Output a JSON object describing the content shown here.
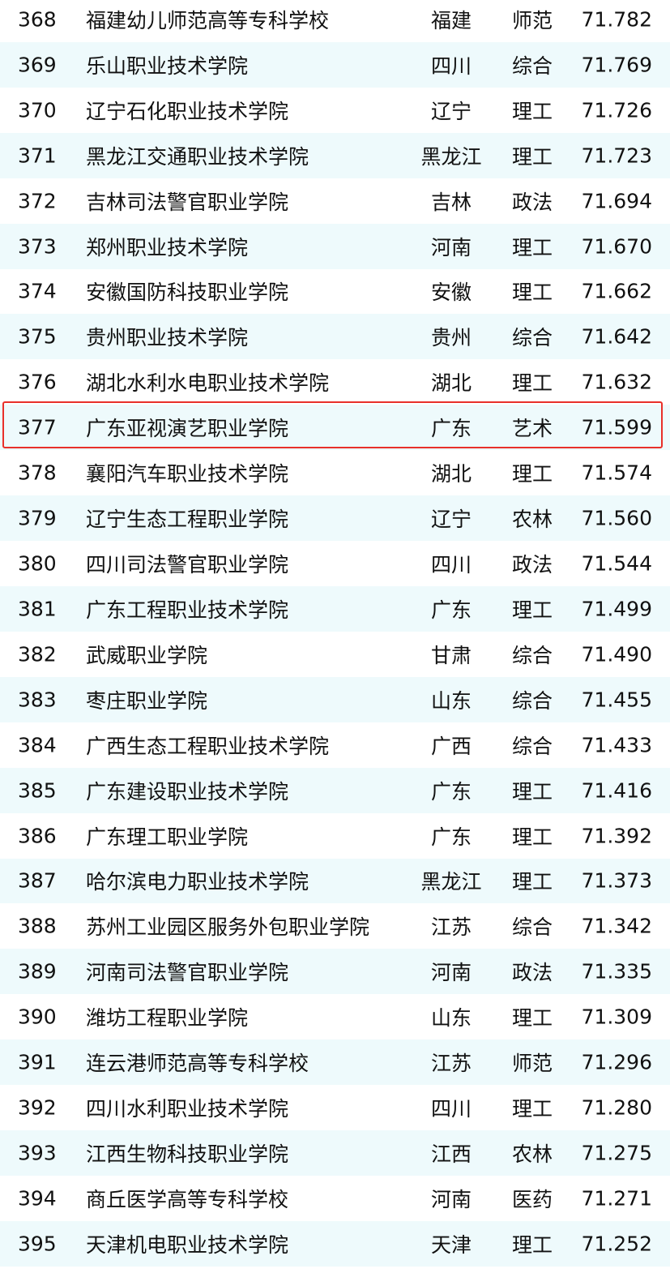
{
  "highlight_color": "#e8302a",
  "highlighted_rank": "377",
  "rows": [
    {
      "rank": "368",
      "name": "福建幼儿师范高等专科学校",
      "province": "福建",
      "type": "师范",
      "score": "71.782"
    },
    {
      "rank": "369",
      "name": "乐山职业技术学院",
      "province": "四川",
      "type": "综合",
      "score": "71.769"
    },
    {
      "rank": "370",
      "name": "辽宁石化职业技术学院",
      "province": "辽宁",
      "type": "理工",
      "score": "71.726"
    },
    {
      "rank": "371",
      "name": "黑龙江交通职业技术学院",
      "province": "黑龙江",
      "type": "理工",
      "score": "71.723"
    },
    {
      "rank": "372",
      "name": "吉林司法警官职业学院",
      "province": "吉林",
      "type": "政法",
      "score": "71.694"
    },
    {
      "rank": "373",
      "name": "郑州职业技术学院",
      "province": "河南",
      "type": "理工",
      "score": "71.670"
    },
    {
      "rank": "374",
      "name": "安徽国防科技职业学院",
      "province": "安徽",
      "type": "理工",
      "score": "71.662"
    },
    {
      "rank": "375",
      "name": "贵州职业技术学院",
      "province": "贵州",
      "type": "综合",
      "score": "71.642"
    },
    {
      "rank": "376",
      "name": "湖北水利水电职业技术学院",
      "province": "湖北",
      "type": "理工",
      "score": "71.632"
    },
    {
      "rank": "377",
      "name": "广东亚视演艺职业学院",
      "province": "广东",
      "type": "艺术",
      "score": "71.599"
    },
    {
      "rank": "378",
      "name": "襄阳汽车职业技术学院",
      "province": "湖北",
      "type": "理工",
      "score": "71.574"
    },
    {
      "rank": "379",
      "name": "辽宁生态工程职业学院",
      "province": "辽宁",
      "type": "农林",
      "score": "71.560"
    },
    {
      "rank": "380",
      "name": "四川司法警官职业学院",
      "province": "四川",
      "type": "政法",
      "score": "71.544"
    },
    {
      "rank": "381",
      "name": "广东工程职业技术学院",
      "province": "广东",
      "type": "理工",
      "score": "71.499"
    },
    {
      "rank": "382",
      "name": "武威职业学院",
      "province": "甘肃",
      "type": "综合",
      "score": "71.490"
    },
    {
      "rank": "383",
      "name": "枣庄职业学院",
      "province": "山东",
      "type": "综合",
      "score": "71.455"
    },
    {
      "rank": "384",
      "name": "广西生态工程职业技术学院",
      "province": "广西",
      "type": "综合",
      "score": "71.433"
    },
    {
      "rank": "385",
      "name": "广东建设职业技术学院",
      "province": "广东",
      "type": "理工",
      "score": "71.416"
    },
    {
      "rank": "386",
      "name": "广东理工职业学院",
      "province": "广东",
      "type": "理工",
      "score": "71.392"
    },
    {
      "rank": "387",
      "name": "哈尔滨电力职业技术学院",
      "province": "黑龙江",
      "type": "理工",
      "score": "71.373"
    },
    {
      "rank": "388",
      "name": "苏州工业园区服务外包职业学院",
      "province": "江苏",
      "type": "综合",
      "score": "71.342"
    },
    {
      "rank": "389",
      "name": "河南司法警官职业学院",
      "province": "河南",
      "type": "政法",
      "score": "71.335"
    },
    {
      "rank": "390",
      "name": "潍坊工程职业学院",
      "province": "山东",
      "type": "理工",
      "score": "71.309"
    },
    {
      "rank": "391",
      "name": "连云港师范高等专科学校",
      "province": "江苏",
      "type": "师范",
      "score": "71.296"
    },
    {
      "rank": "392",
      "name": "四川水利职业技术学院",
      "province": "四川",
      "type": "理工",
      "score": "71.280"
    },
    {
      "rank": "393",
      "name": "江西生物科技职业学院",
      "province": "江西",
      "type": "农林",
      "score": "71.275"
    },
    {
      "rank": "394",
      "name": "商丘医学高等专科学校",
      "province": "河南",
      "type": "医药",
      "score": "71.271"
    },
    {
      "rank": "395",
      "name": "天津机电职业技术学院",
      "province": "天津",
      "type": "理工",
      "score": "71.252"
    }
  ]
}
